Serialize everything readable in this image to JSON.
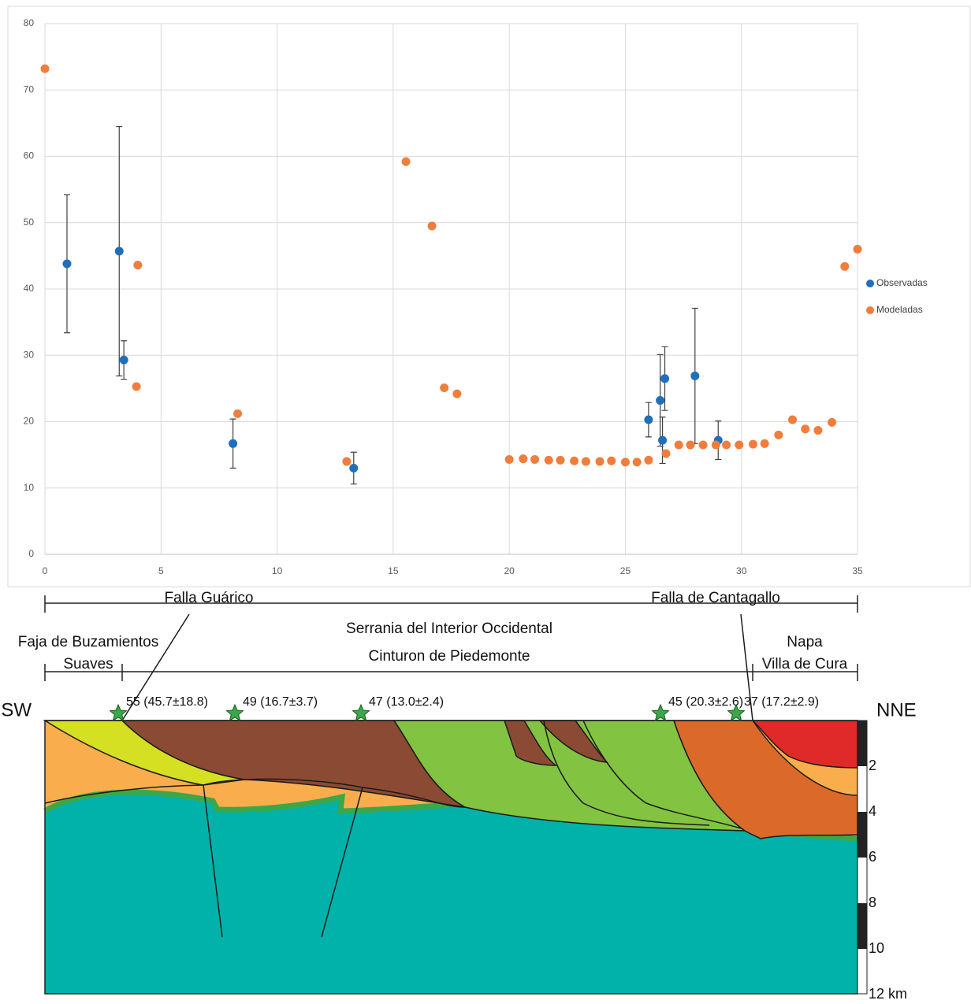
{
  "chart_data": {
    "type": "scatter",
    "xlim": [
      0,
      35
    ],
    "xticks": [
      0,
      5,
      10,
      15,
      20,
      25,
      30,
      35
    ],
    "ylim": [
      0,
      80
    ],
    "yticks": [
      0,
      10,
      20,
      30,
      40,
      50,
      60,
      70,
      80
    ],
    "grid": true,
    "legend": "right",
    "series": [
      {
        "name": "Observadas",
        "color": "#1f6fba",
        "x": [
          0.95,
          3.2,
          3.4,
          8.1,
          13.3,
          26.0,
          26.5,
          26.6,
          26.7,
          28.0,
          29.0
        ],
        "values": [
          43.8,
          45.7,
          29.3,
          16.7,
          13.0,
          20.3,
          23.2,
          17.2,
          26.5,
          26.9,
          17.2
        ],
        "errors": [
          10.4,
          18.8,
          2.9,
          3.7,
          2.4,
          2.6,
          6.9,
          3.5,
          4.8,
          10.2,
          2.9
        ]
      },
      {
        "name": "Modeladas",
        "color": "#f07d3c",
        "x": [
          0,
          3.94,
          4.0,
          8.3,
          13.0,
          15.55,
          16.67,
          17.2,
          17.75,
          20.0,
          20.6,
          21.1,
          21.7,
          22.2,
          22.8,
          23.3,
          23.9,
          24.4,
          25.0,
          25.5,
          26.0,
          26.75,
          27.3,
          27.8,
          28.35,
          28.9,
          29.35,
          29.9,
          30.5,
          31.0,
          31.6,
          32.2,
          32.75,
          33.3,
          33.9,
          34.45,
          35.0
        ],
        "values": [
          73.2,
          25.3,
          43.6,
          21.2,
          14.0,
          59.2,
          49.5,
          25.1,
          24.2,
          14.3,
          14.4,
          14.3,
          14.2,
          14.2,
          14.1,
          14.0,
          14.0,
          14.1,
          13.9,
          13.9,
          14.2,
          15.2,
          16.5,
          16.5,
          16.5,
          16.5,
          16.5,
          16.5,
          16.6,
          16.7,
          18.0,
          20.3,
          18.9,
          18.7,
          19.9,
          43.4,
          46.0
        ]
      }
    ]
  },
  "section": {
    "fault_left": "Falla Guárico",
    "fault_right": "Falla de Cantagallo",
    "region_top": "Serrania del Interior Occidental",
    "unit_left": [
      "Faja de Buzamientos",
      "Suaves"
    ],
    "unit_center": "Cinturon de Piedemonte",
    "unit_right": [
      "Napa",
      "Villa de Cura"
    ],
    "dir_left": "SW",
    "dir_right": "NNE",
    "stations": [
      "55 (45.7±18.8)",
      "49 (16.7±3.7)",
      "47 (13.0±2.4)",
      "45 (20.3±2.6)",
      "37 (17.2±2.9)"
    ],
    "depth_labels": [
      "2",
      "4",
      "6",
      "8",
      "10",
      "12 km"
    ]
  }
}
